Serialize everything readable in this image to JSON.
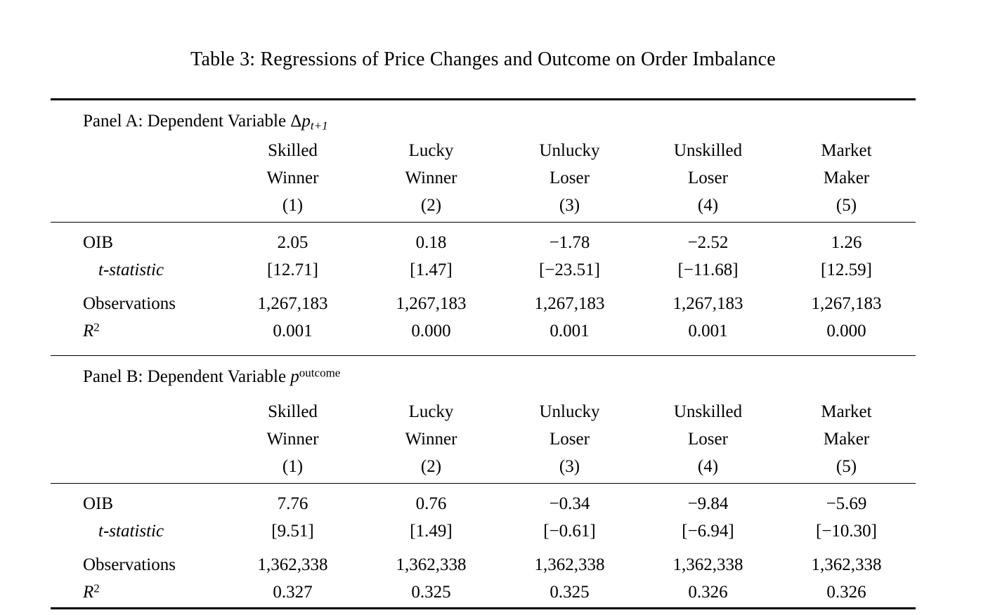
{
  "page": {
    "title": "Table 3: Regressions of Price Changes and Outcome on Order Imbalance"
  },
  "column_headers": [
    {
      "line1": "Skilled",
      "line2": "Winner",
      "number": "(1)"
    },
    {
      "line1": "Lucky",
      "line2": "Winner",
      "number": "(2)"
    },
    {
      "line1": "Unlucky",
      "line2": "Loser",
      "number": "(3)"
    },
    {
      "line1": "Unskilled",
      "line2": "Loser",
      "number": "(4)"
    },
    {
      "line1": "Market",
      "line2": "Maker",
      "number": "(5)"
    }
  ],
  "panels": [
    {
      "heading_prefix": "Panel A: Dependent Variable",
      "var_prefix": "Δ",
      "var_base": "p",
      "var_sub": "t+1",
      "var_sup": "",
      "rows": {
        "oib": {
          "label": "OIB",
          "values": [
            "2.05",
            "0.18",
            "−1.78",
            "−2.52",
            "1.26"
          ]
        },
        "tstat": {
          "label": "t-statistic",
          "values": [
            "[12.71]",
            "[1.47]",
            "[−23.51]",
            "[−11.68]",
            "[12.59]"
          ]
        },
        "obs": {
          "label": "Observations",
          "values": [
            "1,267,183",
            "1,267,183",
            "1,267,183",
            "1,267,183",
            "1,267,183"
          ]
        },
        "r2": {
          "label_base": "R",
          "label_sup": "2",
          "values": [
            "0.001",
            "0.000",
            "0.001",
            "0.001",
            "0.000"
          ]
        }
      }
    },
    {
      "heading_prefix": "Panel B: Dependent Variable",
      "var_prefix": "",
      "var_base": "p",
      "var_sub": "",
      "var_sup": "outcome",
      "rows": {
        "oib": {
          "label": "OIB",
          "values": [
            "7.76",
            "0.76",
            "−0.34",
            "−9.84",
            "−5.69"
          ]
        },
        "tstat": {
          "label": "t-statistic",
          "values": [
            "[9.51]",
            "[1.49]",
            "[−0.61]",
            "[−6.94]",
            "[−10.30]"
          ]
        },
        "obs": {
          "label": "Observations",
          "values": [
            "1,362,338",
            "1,362,338",
            "1,362,338",
            "1,362,338",
            "1,362,338"
          ]
        },
        "r2": {
          "label_base": "R",
          "label_sup": "2",
          "values": [
            "0.327",
            "0.325",
            "0.325",
            "0.326",
            "0.326"
          ]
        }
      }
    }
  ]
}
